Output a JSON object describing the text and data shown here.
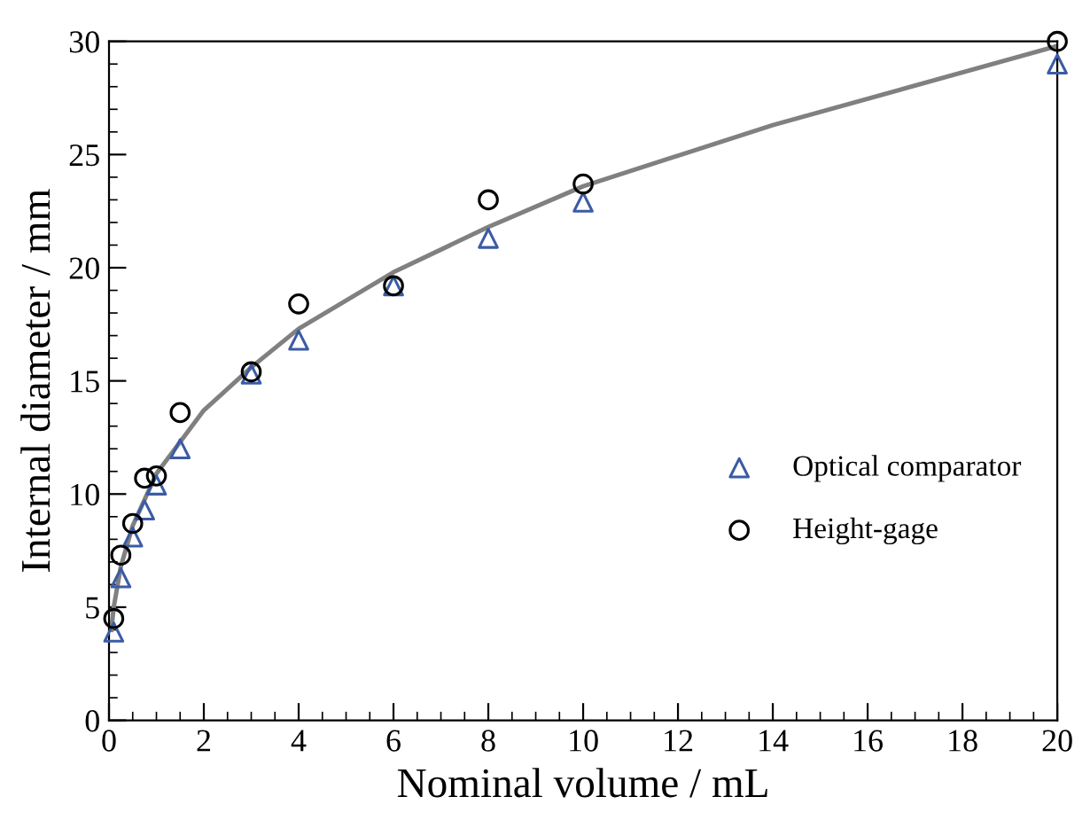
{
  "chart_data": {
    "type": "scatter",
    "xlabel": "Nominal volume / mL",
    "ylabel": "Internal diameter / mm",
    "xlim": [
      0,
      20
    ],
    "ylim": [
      0,
      30
    ],
    "xticks": [
      0,
      2,
      4,
      6,
      8,
      10,
      12,
      14,
      16,
      18,
      20
    ],
    "yticks": [
      0,
      5,
      10,
      15,
      20,
      25,
      30
    ],
    "grid": false,
    "legend": "bottom right",
    "series": [
      {
        "name": "Optical comparator",
        "color": "#3b5ba5",
        "marker": "triangle",
        "x": [
          0.1,
          0.25,
          0.5,
          0.75,
          1,
          1.5,
          3,
          4,
          6,
          8,
          10,
          20
        ],
        "values": [
          3.9,
          6.3,
          8.1,
          9.3,
          10.4,
          12.0,
          15.3,
          16.8,
          19.2,
          21.3,
          22.9,
          29.0
        ]
      },
      {
        "name": "Height-gage",
        "color": "#000000",
        "marker": "circle",
        "x": [
          0.1,
          0.25,
          0.5,
          0.75,
          1,
          1.5,
          3,
          4,
          6,
          8,
          10,
          20
        ],
        "values": [
          4.5,
          7.3,
          8.7,
          10.7,
          10.8,
          13.6,
          15.4,
          18.4,
          19.2,
          23.0,
          23.7,
          30.0
        ]
      },
      {
        "type": "line",
        "color": "#808080",
        "marker": "none",
        "x": [
          0.05,
          0.1,
          0.25,
          0.5,
          1,
          2,
          3,
          4,
          6,
          8,
          10,
          14,
          20
        ],
        "values": [
          4.0,
          5.0,
          6.8,
          8.6,
          10.9,
          13.7,
          15.6,
          17.3,
          19.8,
          21.8,
          23.6,
          26.3,
          29.8
        ]
      }
    ]
  }
}
